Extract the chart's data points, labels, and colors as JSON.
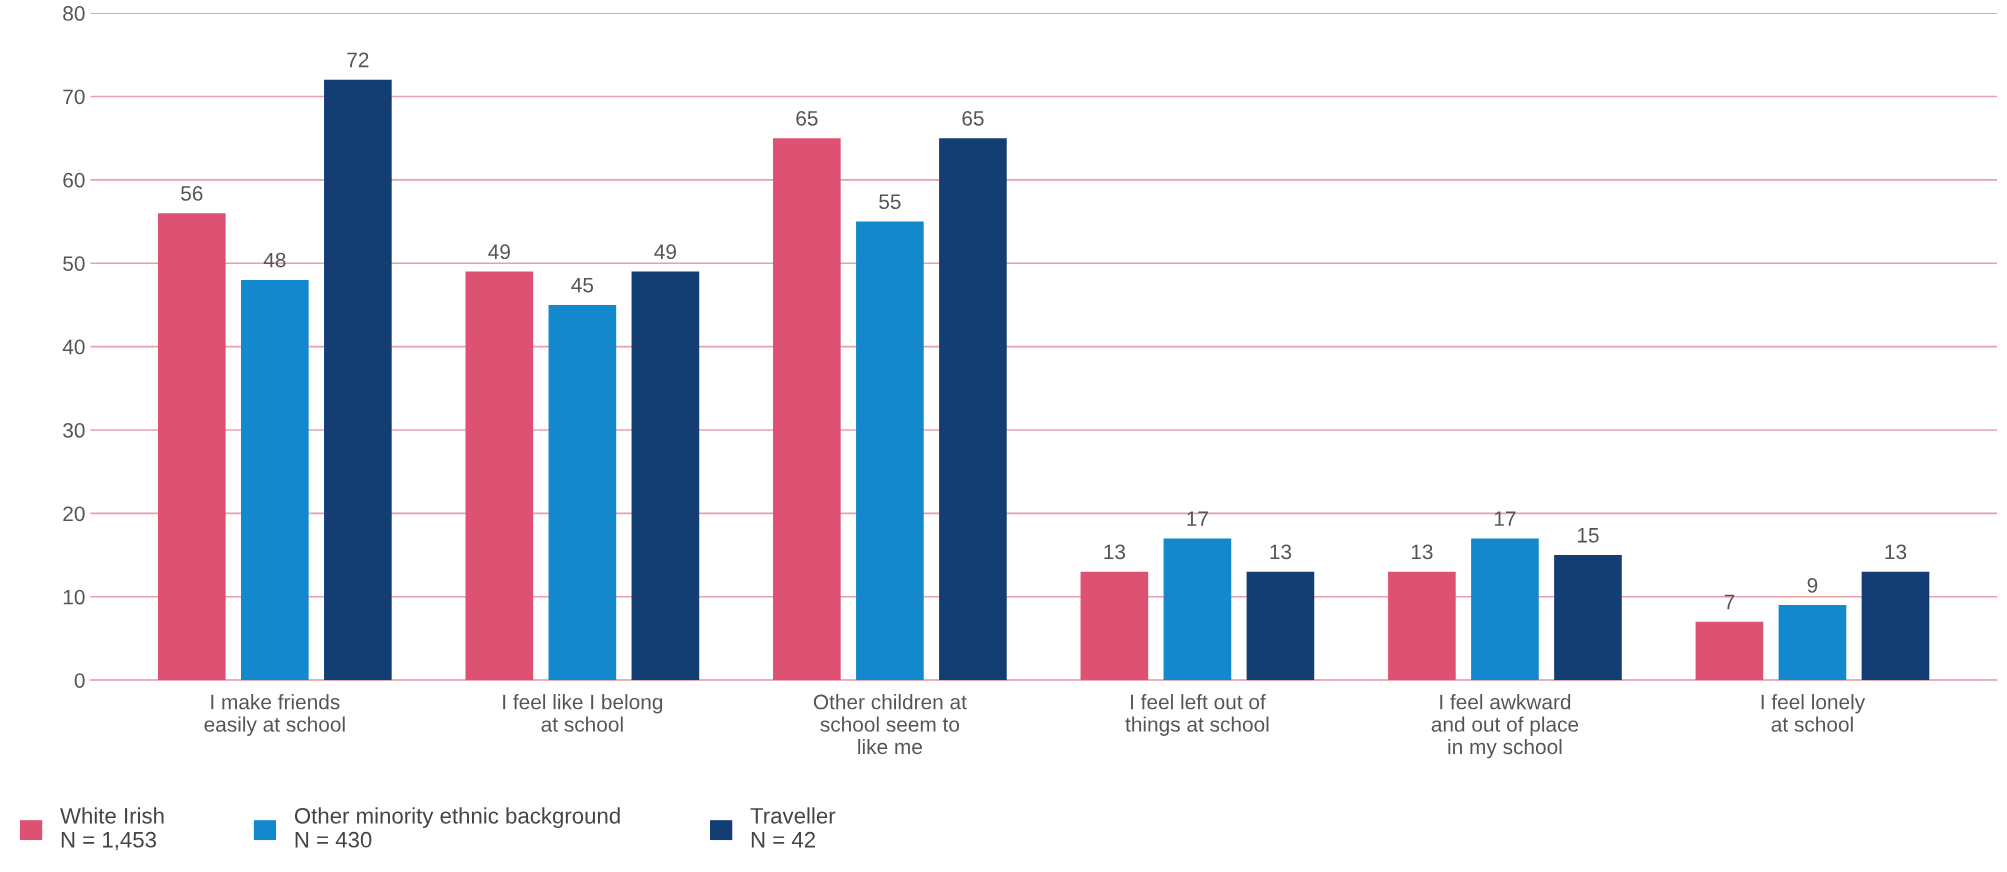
{
  "chart_data": {
    "type": "bar",
    "categories": [
      "I make friends\neasily at school",
      "I feel like I belong\nat school",
      "Other children at\nschool seem to\nlike me",
      "I feel left out of\nthings at school",
      "I feel awkward\nand out of place\nin my school",
      "I feel lonely\nat school"
    ],
    "series": [
      {
        "name": "White Irish\nN = 1,453",
        "color": "#dd5272",
        "values": [
          56,
          49,
          65,
          13,
          13,
          7
        ]
      },
      {
        "name": "Other minority ethnic background\nN = 430",
        "color": "#1488cc",
        "values": [
          48,
          45,
          55,
          17,
          17,
          9
        ]
      },
      {
        "name": "Traveller\nN = 42",
        "color": "#123e74",
        "values": [
          72,
          49,
          65,
          13,
          15,
          13
        ]
      }
    ],
    "ylim": [
      0,
      80
    ],
    "yticks": [
      0,
      10,
      20,
      30,
      40,
      50,
      60,
      70,
      80
    ],
    "grid": "y",
    "legend": "bottom",
    "data_labels": true
  }
}
